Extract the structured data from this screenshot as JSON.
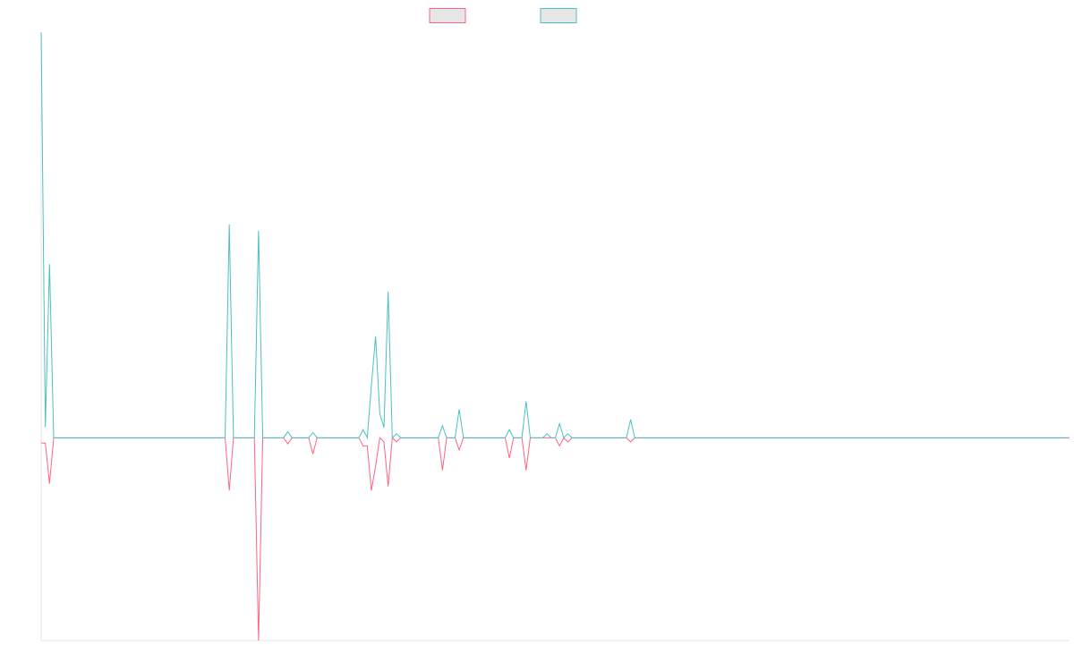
{
  "chart_data": {
    "type": "line",
    "x": [
      0,
      1,
      2,
      3,
      44,
      45,
      46,
      51,
      52,
      53,
      58,
      59,
      60,
      64,
      65,
      66,
      76,
      77,
      78,
      79,
      80,
      81,
      82,
      83,
      84,
      85,
      86,
      95,
      96,
      97,
      99,
      100,
      101,
      111,
      112,
      113,
      115,
      116,
      117,
      120,
      121,
      122,
      123,
      124,
      125,
      126,
      127,
      140,
      141,
      142,
      246
    ],
    "xlim": [
      0,
      246
    ],
    "ylim": [
      -50,
      100
    ],
    "series": [
      {
        "color": "#ff6384",
        "values": [
          -1.3,
          -1.3,
          -11.3,
          0,
          0,
          -13,
          0,
          0,
          -50,
          0,
          0,
          -1.5,
          0,
          0,
          -4,
          0,
          0,
          -2,
          -2,
          -13,
          -7,
          0,
          -1,
          -12,
          0,
          -1,
          0,
          0,
          -8,
          0,
          0,
          -3,
          0,
          0,
          -5,
          0,
          0,
          -8,
          0,
          0,
          0,
          0,
          0,
          -2,
          0,
          -1,
          0,
          0,
          -1,
          0,
          0
        ]
      },
      {
        "color": "#4bc0c0",
        "values": [
          100,
          2.6,
          42.8,
          0,
          0,
          52.6,
          0,
          0,
          51.1,
          0,
          0,
          1.5,
          0,
          0,
          1.3,
          0,
          0,
          2,
          0,
          13,
          25,
          6,
          2.5,
          36,
          0,
          1,
          0,
          0,
          3,
          0,
          0,
          7,
          0,
          0,
          2,
          0,
          0,
          9,
          0,
          0,
          1,
          0,
          0,
          3.5,
          0,
          1,
          0,
          0,
          4.5,
          0,
          0
        ]
      }
    ]
  }
}
